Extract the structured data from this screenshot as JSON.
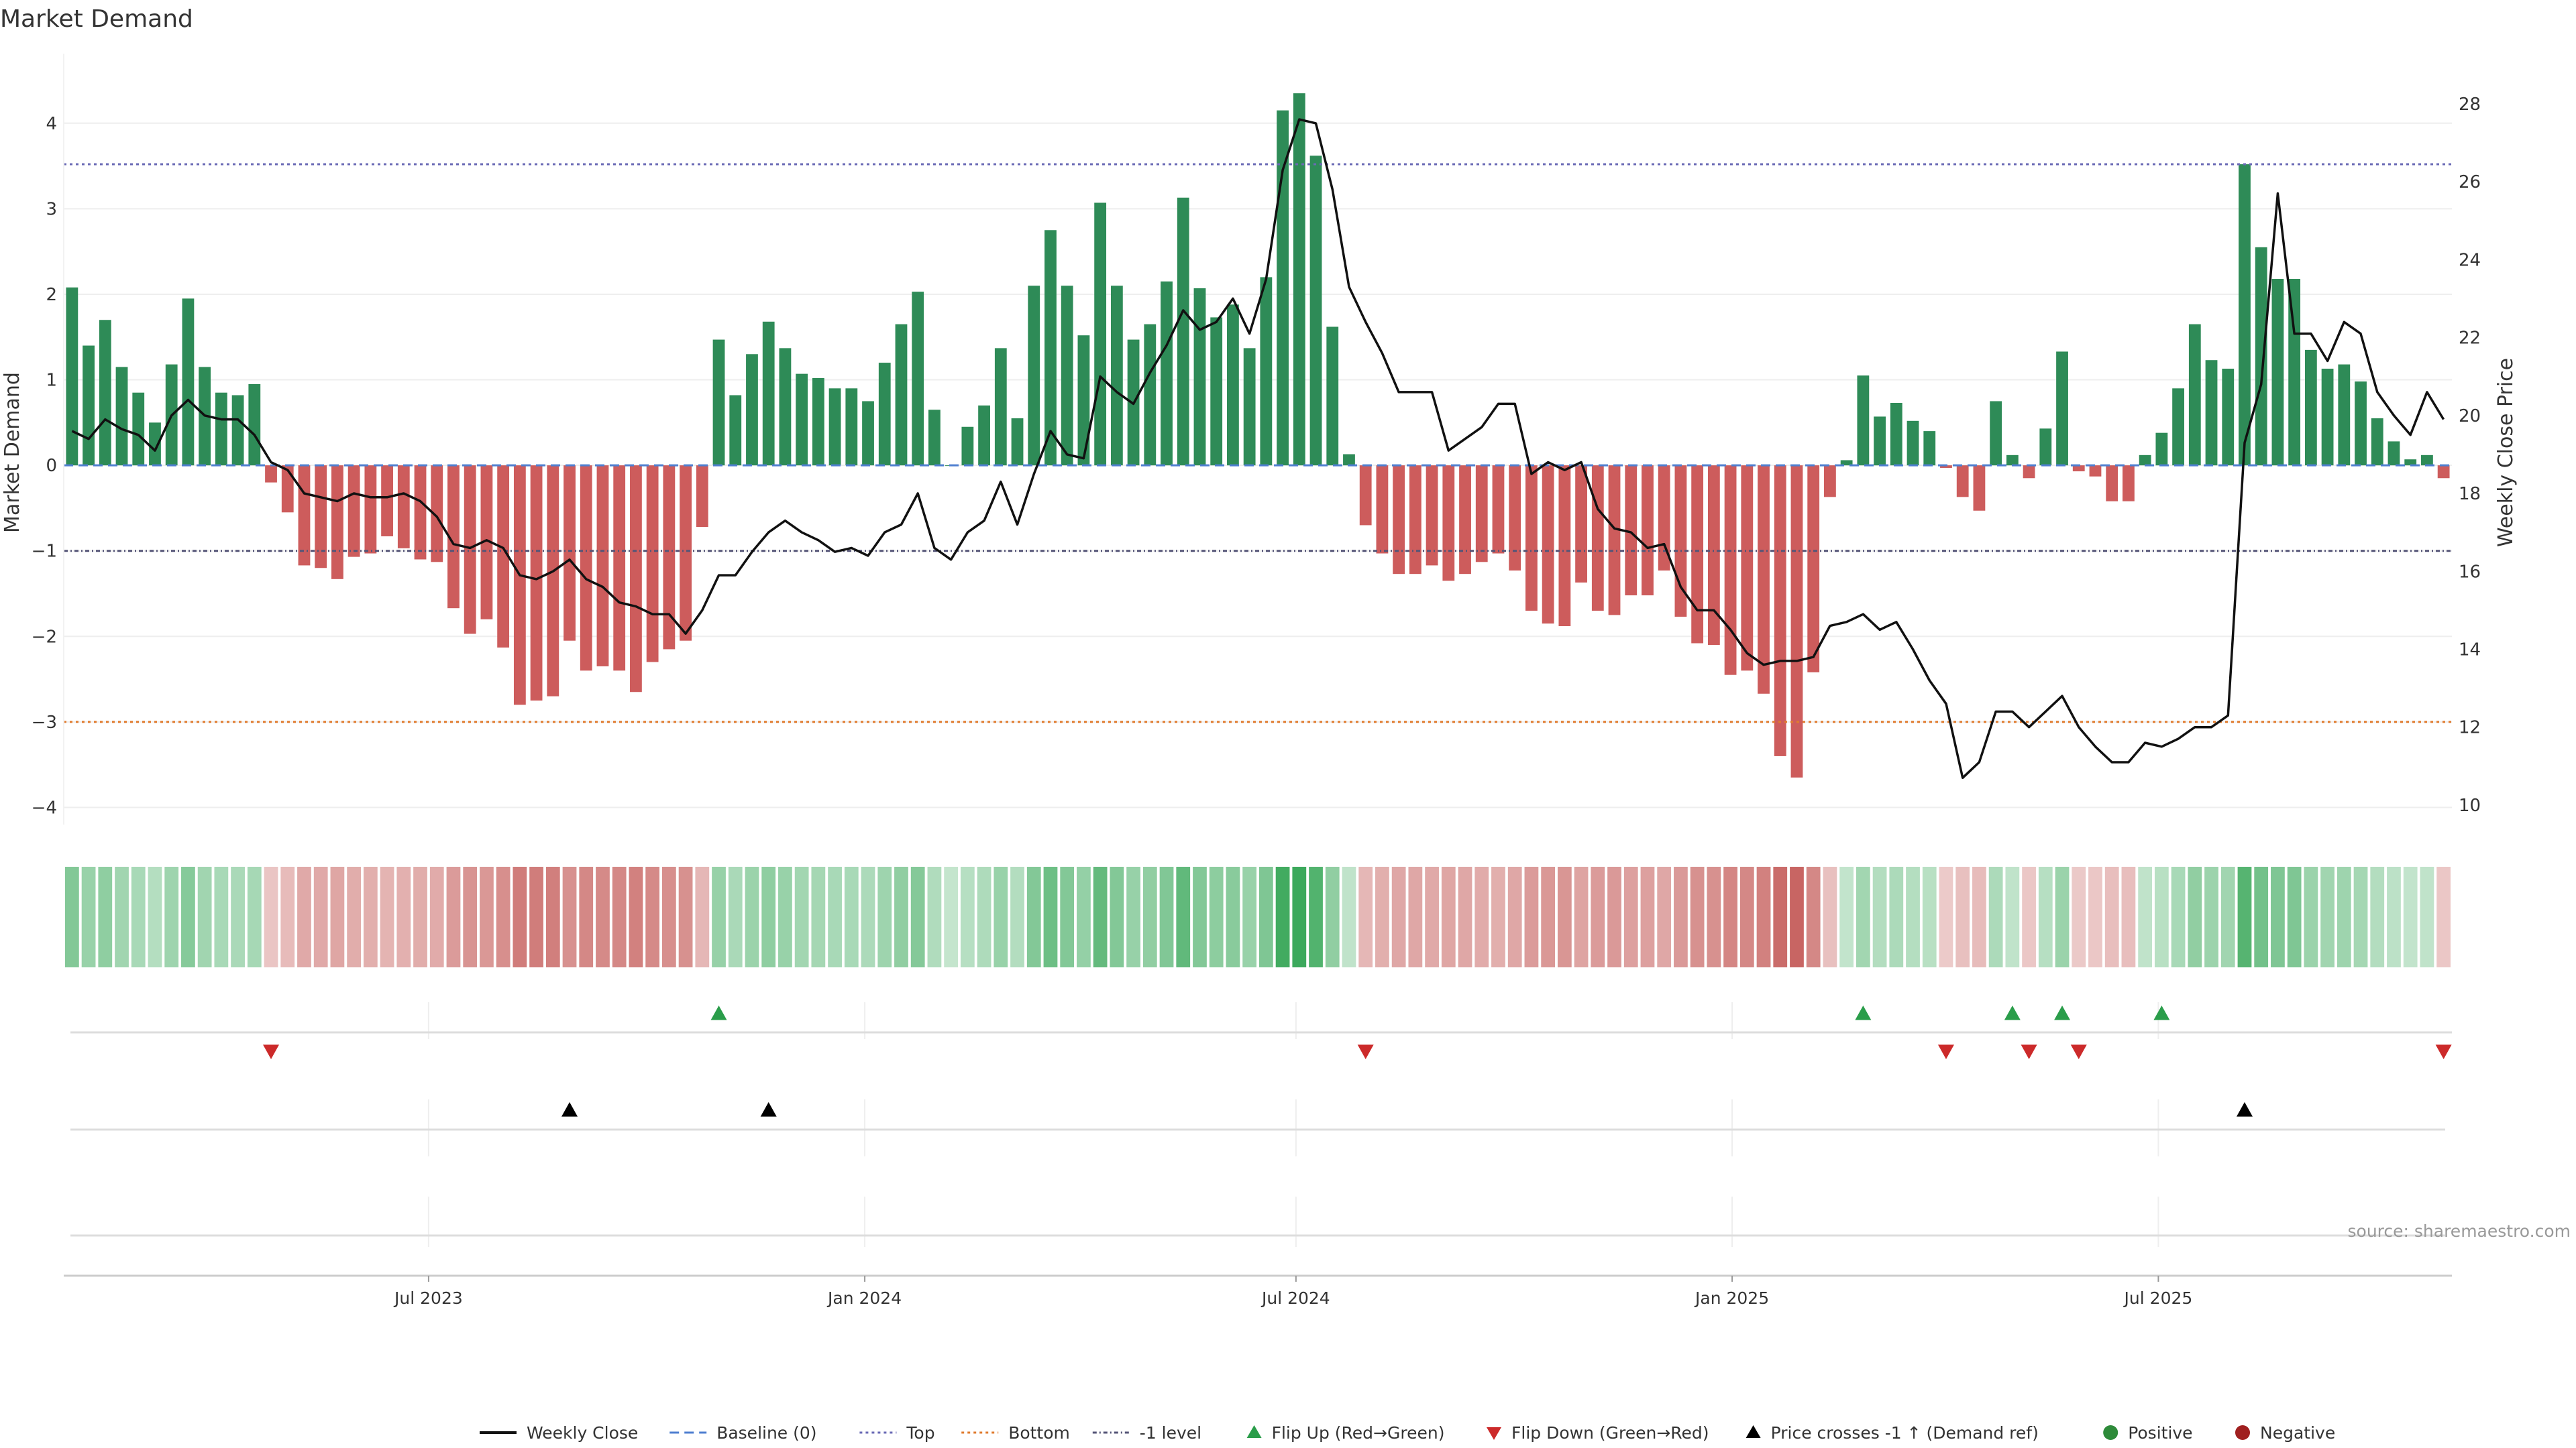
{
  "chart_data": {
    "type": "bar",
    "title": "Market Demand",
    "ylabel": "Market Demand",
    "y2label": "Weekly Close Price",
    "ylim": [
      -4.2,
      4.5
    ],
    "y2lim": [
      9.5,
      28.6
    ],
    "yticks": [
      4,
      3,
      2,
      1,
      0,
      -1,
      -2,
      -3,
      -4
    ],
    "ytick_labels": [
      "4",
      "3",
      "2",
      "1",
      "0",
      "−1",
      "−2",
      "−3",
      "−4"
    ],
    "y2ticks": [
      28,
      26,
      24,
      22,
      20,
      18,
      16,
      14,
      12,
      10
    ],
    "xtick_labels": [
      "Jul 2023",
      "Jan 2024",
      "Jul 2024",
      "Jan 2025",
      "Jul 2025"
    ],
    "xtick_positions": [
      22.0,
      48.3,
      74.3,
      100.6,
      126.3
    ],
    "reference_lines": {
      "top": 3.52,
      "bottom": -3.0,
      "minus_one": -1.0,
      "baseline": 0
    },
    "source": "source: sharemaestro.com",
    "legend": [
      {
        "label": "Weekly Close",
        "symbol": "line",
        "color": "#111111"
      },
      {
        "label": "Baseline (0)",
        "symbol": "dash",
        "color": "#4f7fd0"
      },
      {
        "label": "Top",
        "symbol": "dot",
        "color": "#6a6ab5"
      },
      {
        "label": "Bottom",
        "symbol": "dot",
        "color": "#e07b2e"
      },
      {
        "label": "-1 level",
        "symbol": "dash-dot",
        "color": "#555577"
      },
      {
        "label": "Flip Up (Red→Green)",
        "symbol": "tri-up",
        "color": "#2a9d4a"
      },
      {
        "label": "Flip Down (Green→Red)",
        "symbol": "tri-down",
        "color": "#cc2a2a"
      },
      {
        "label": "Price crosses -1 ↑ (Demand ref)",
        "symbol": "tri-up",
        "color": "#000000"
      },
      {
        "label": "Positive",
        "symbol": "circle",
        "color": "#2e8b3a"
      },
      {
        "label": "Negative",
        "symbol": "circle",
        "color": "#a02020"
      }
    ],
    "demand": [
      2.08,
      1.4,
      1.7,
      1.15,
      0.85,
      0.5,
      1.18,
      1.95,
      1.15,
      0.85,
      0.82,
      0.95,
      -0.2,
      -0.55,
      -1.17,
      -1.2,
      -1.33,
      -1.07,
      -1.03,
      -0.83,
      -0.97,
      -1.1,
      -1.13,
      -1.67,
      -1.97,
      -1.8,
      -2.13,
      -2.8,
      -2.75,
      -2.7,
      -2.05,
      -2.4,
      -2.35,
      -2.4,
      -2.65,
      -2.3,
      -2.15,
      -2.05,
      -0.72,
      1.47,
      0.82,
      1.3,
      1.68,
      1.37,
      1.07,
      1.02,
      0.9,
      0.9,
      0.75,
      1.2,
      1.65,
      2.03,
      0.65,
      0.0,
      0.45,
      0.7,
      1.37,
      0.55,
      2.1,
      2.75,
      2.1,
      1.52,
      3.07,
      2.1,
      1.47,
      1.65,
      2.15,
      3.13,
      2.07,
      1.73,
      1.88,
      1.37,
      2.2,
      4.15,
      4.35,
      3.62,
      1.62,
      0.13,
      -0.7,
      -1.03,
      -1.27,
      -1.27,
      -1.17,
      -1.35,
      -1.27,
      -1.13,
      -1.03,
      -1.23,
      -1.7,
      -1.85,
      -1.88,
      -1.37,
      -1.7,
      -1.75,
      -1.52,
      -1.52,
      -1.23,
      -1.77,
      -2.08,
      -2.1,
      -2.45,
      -2.4,
      -2.67,
      -3.4,
      -3.65,
      -2.42,
      -0.37,
      0.06,
      1.05,
      0.57,
      0.73,
      0.52,
      0.4,
      -0.03,
      -0.37,
      -0.53,
      0.75,
      0.12,
      -0.15,
      0.43,
      1.33,
      -0.07,
      -0.13,
      -0.42,
      -0.42,
      0.12,
      0.38,
      0.9,
      1.65,
      1.23,
      1.13,
      3.52,
      2.55,
      2.18,
      2.18,
      1.35,
      1.13,
      1.18,
      0.98,
      0.55,
      0.28,
      0.07,
      0.12,
      -0.15
    ],
    "weekly_close": [
      19.6,
      19.4,
      19.9,
      19.65,
      19.5,
      19.1,
      20.0,
      20.4,
      20.0,
      19.9,
      19.9,
      19.5,
      18.8,
      18.6,
      18.0,
      17.9,
      17.8,
      18.0,
      17.9,
      17.9,
      18.0,
      17.8,
      17.4,
      16.7,
      16.6,
      16.8,
      16.6,
      15.9,
      15.8,
      16.0,
      16.3,
      15.8,
      15.6,
      15.2,
      15.1,
      14.9,
      14.9,
      14.4,
      15.0,
      15.9,
      15.9,
      16.5,
      17.0,
      17.3,
      17.0,
      16.8,
      16.5,
      16.6,
      16.4,
      17.0,
      17.2,
      18.0,
      16.6,
      16.3,
      17.0,
      17.3,
      18.3,
      17.2,
      18.5,
      19.6,
      19.0,
      18.9,
      21.0,
      20.6,
      20.3,
      21.1,
      21.8,
      22.7,
      22.2,
      22.4,
      23.0,
      22.1,
      23.5,
      26.3,
      27.6,
      27.5,
      25.8,
      23.3,
      22.4,
      21.6,
      20.6,
      20.6,
      20.6,
      19.1,
      19.4,
      19.7,
      20.3,
      20.3,
      18.5,
      18.8,
      18.6,
      18.8,
      17.6,
      17.1,
      17.0,
      16.6,
      16.7,
      15.6,
      15.0,
      15.0,
      14.5,
      13.9,
      13.6,
      13.7,
      13.7,
      13.8,
      14.6,
      14.7,
      14.9,
      14.5,
      14.7,
      14.0,
      13.2,
      12.6,
      10.7,
      11.1,
      12.4,
      12.4,
      12.0,
      12.4,
      12.8,
      12.0,
      11.5,
      11.1,
      11.1,
      11.6,
      11.5,
      11.7,
      12.0,
      12.0,
      12.3,
      19.3,
      20.8,
      25.7,
      22.1,
      22.1,
      21.4,
      22.4,
      22.1,
      20.6,
      20.0,
      19.5,
      20.6,
      19.9
    ],
    "flip_up_indices": [
      39,
      108,
      117,
      120,
      126
    ],
    "flip_down_indices": [
      12,
      78,
      113,
      118,
      121,
      143
    ],
    "price_cross_indices": [
      30,
      42,
      131
    ]
  }
}
